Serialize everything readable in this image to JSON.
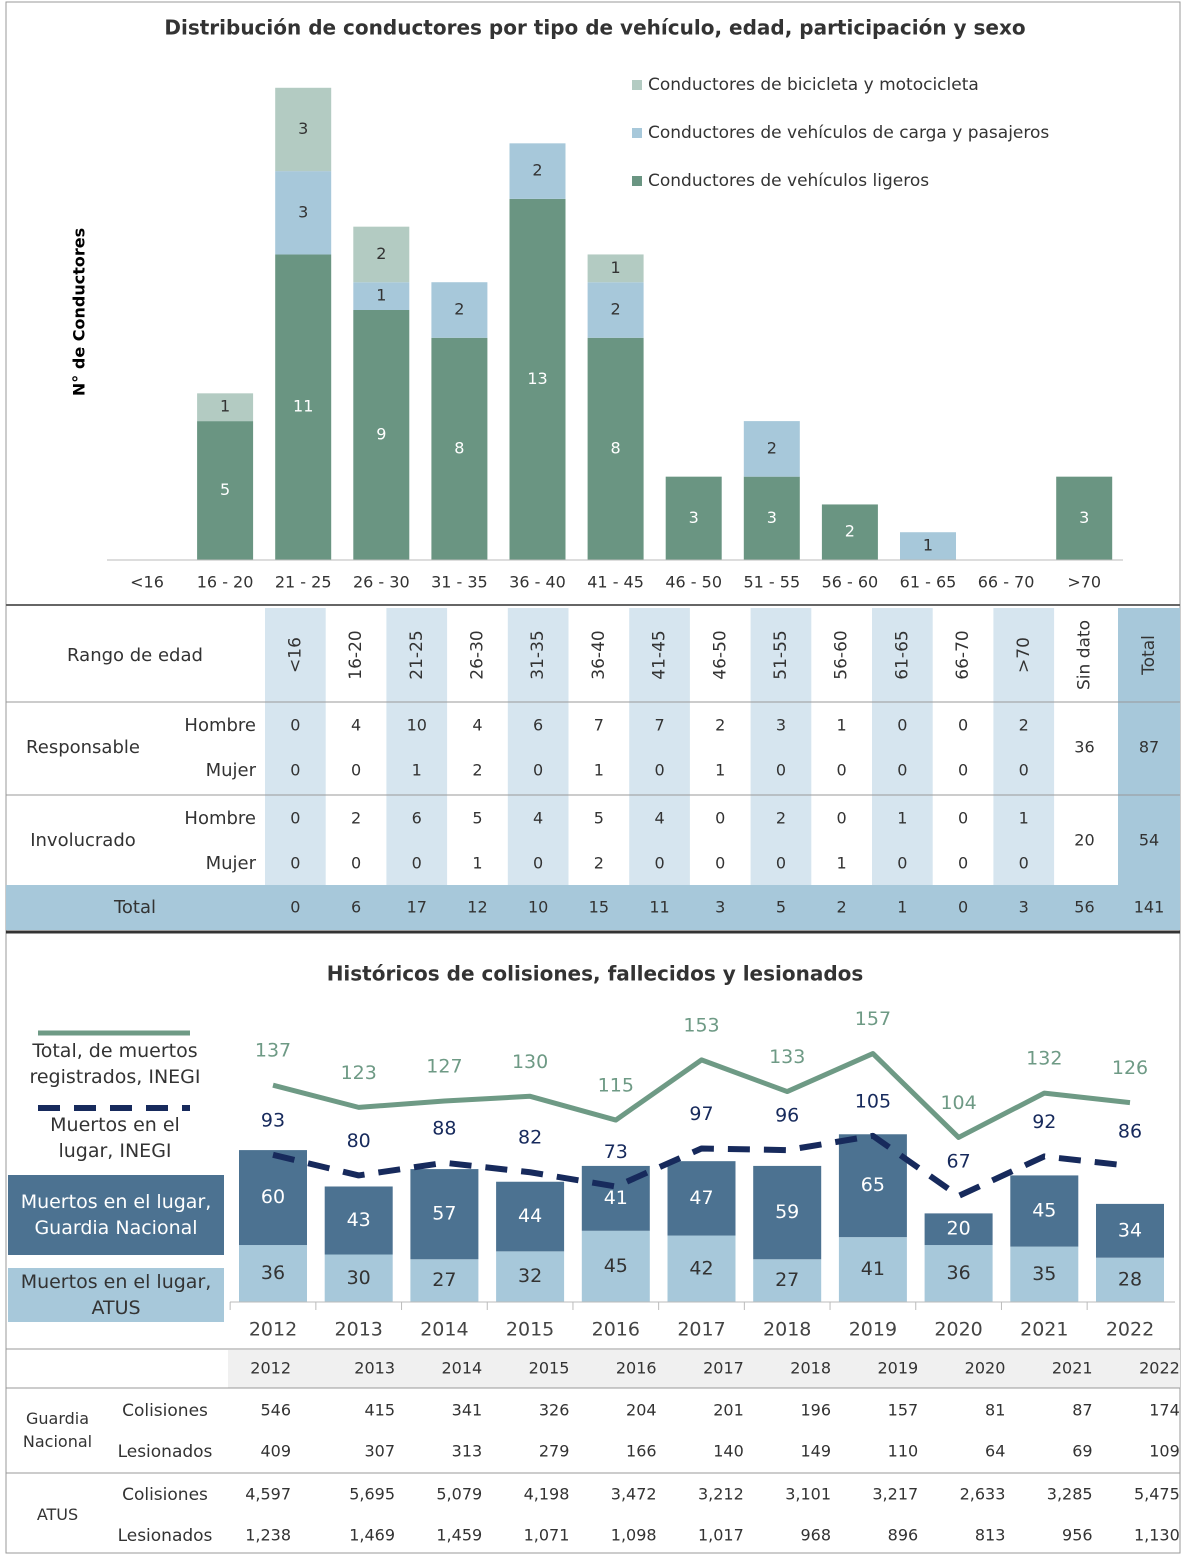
{
  "chart_data": [
    {
      "type": "stacked_bar",
      "title": "Distribución de conductores por tipo de vehículo, edad, participación y sexo",
      "y_label": "N° de Conductores",
      "categories": [
        "<16",
        "16 - 20",
        "21 - 25",
        "26 - 30",
        "31 - 35",
        "36 - 40",
        "41 - 45",
        "46 - 50",
        "51 - 55",
        "56 - 60",
        "61 - 65",
        "66 - 70",
        ">70"
      ],
      "series": [
        {
          "name": "Conductores de vehículos ligeros",
          "color": "#6a9582",
          "values": [
            0,
            5,
            11,
            9,
            8,
            13,
            8,
            3,
            3,
            2,
            0,
            0,
            3
          ]
        },
        {
          "name": "Conductores de vehículos de carga y pasajeros",
          "color": "#a7c8da",
          "values": [
            0,
            0,
            3,
            1,
            2,
            2,
            2,
            0,
            2,
            0,
            1,
            0,
            0
          ]
        },
        {
          "name": "Conductores de bicicleta y motocicleta",
          "color": "#b3cbc2",
          "values": [
            0,
            1,
            3,
            2,
            0,
            0,
            1,
            0,
            0,
            0,
            0,
            0,
            0
          ]
        }
      ],
      "ylim": [
        0,
        18
      ]
    },
    {
      "type": "bar_line",
      "title": "Históricos de colisiones, fallecidos y lesionados",
      "categories": [
        "2012",
        "2013",
        "2014",
        "2015",
        "2016",
        "2017",
        "2018",
        "2019",
        "2020",
        "2021",
        "2022"
      ],
      "series": [
        {
          "name": "Muertos en el lugar, ATUS",
          "type": "bar",
          "color": "#a7c8da",
          "values": [
            36,
            30,
            27,
            32,
            45,
            42,
            27,
            41,
            36,
            35,
            28
          ]
        },
        {
          "name": "Muertos en el lugar, Guardia Nacional",
          "type": "bar",
          "color": "#4c7291",
          "values": [
            60,
            43,
            57,
            44,
            41,
            47,
            59,
            65,
            20,
            45,
            34
          ]
        },
        {
          "name": "Total, de muertos registrados, INEGI",
          "type": "line",
          "color": "#6e9a85",
          "values": [
            137,
            123,
            127,
            130,
            115,
            153,
            133,
            157,
            104,
            132,
            126
          ]
        },
        {
          "name": "Muertos en el lugar, INEGI",
          "type": "line",
          "dashed": true,
          "color": "#172a5c",
          "values": [
            93,
            80,
            88,
            82,
            73,
            97,
            96,
            105,
            67,
            92,
            86
          ]
        }
      ],
      "ylim": [
        0,
        170
      ]
    }
  ],
  "tabla_edad": {
    "header": "Rango de edad",
    "columns": [
      "<16",
      "16-20",
      "21-25",
      "26-30",
      "31-35",
      "36-40",
      "41-45",
      "46-50",
      "51-55",
      "56-60",
      "61-65",
      "66-70",
      ">70",
      "Sin dato",
      "Total"
    ],
    "groups": [
      {
        "name": "Responsable",
        "rows": [
          {
            "label": "Hombre",
            "values": [
              0,
              4,
              10,
              4,
              6,
              7,
              7,
              2,
              3,
              1,
              0,
              0,
              2
            ]
          },
          {
            "label": "Mujer",
            "values": [
              0,
              0,
              1,
              2,
              0,
              1,
              0,
              1,
              0,
              0,
              0,
              0,
              0
            ]
          }
        ],
        "sin_dato": 36,
        "total": 87
      },
      {
        "name": "Involucrado",
        "rows": [
          {
            "label": "Hombre",
            "values": [
              0,
              2,
              6,
              5,
              4,
              5,
              4,
              0,
              2,
              0,
              1,
              0,
              1
            ]
          },
          {
            "label": "Mujer",
            "values": [
              0,
              0,
              0,
              1,
              0,
              2,
              0,
              0,
              0,
              1,
              0,
              0,
              0
            ]
          }
        ],
        "sin_dato": 20,
        "total": 54
      }
    ],
    "total_row": {
      "label": "Total",
      "values": [
        0,
        6,
        17,
        12,
        10,
        15,
        11,
        3,
        5,
        2,
        1,
        0,
        3
      ],
      "sin_dato": 56,
      "total": 141
    }
  },
  "tabla_historico": {
    "years": [
      "2012",
      "2013",
      "2014",
      "2015",
      "2016",
      "2017",
      "2018",
      "2019",
      "2020",
      "2021",
      "2022"
    ],
    "groups": [
      {
        "name": "Guardia Nacional",
        "rows": [
          {
            "label": "Colisiones",
            "values": [
              546,
              415,
              341,
              326,
              204,
              201,
              196,
              157,
              81,
              87,
              174
            ]
          },
          {
            "label": "Lesionados",
            "values": [
              409,
              307,
              313,
              279,
              166,
              140,
              149,
              110,
              64,
              69,
              109
            ]
          }
        ]
      },
      {
        "name": "ATUS",
        "rows": [
          {
            "label": "Colisiones",
            "values": [
              "4,597",
              "5,695",
              "5,079",
              "4,198",
              "3,472",
              "3,212",
              "3,101",
              "3,217",
              "2,633",
              "3,285",
              "5,475"
            ]
          },
          {
            "label": "Lesionados",
            "values": [
              "1,238",
              "1,469",
              "1,459",
              "1,071",
              "1,098",
              "1,017",
              "968",
              "896",
              "813",
              "956",
              "1,130"
            ]
          }
        ]
      }
    ]
  }
}
